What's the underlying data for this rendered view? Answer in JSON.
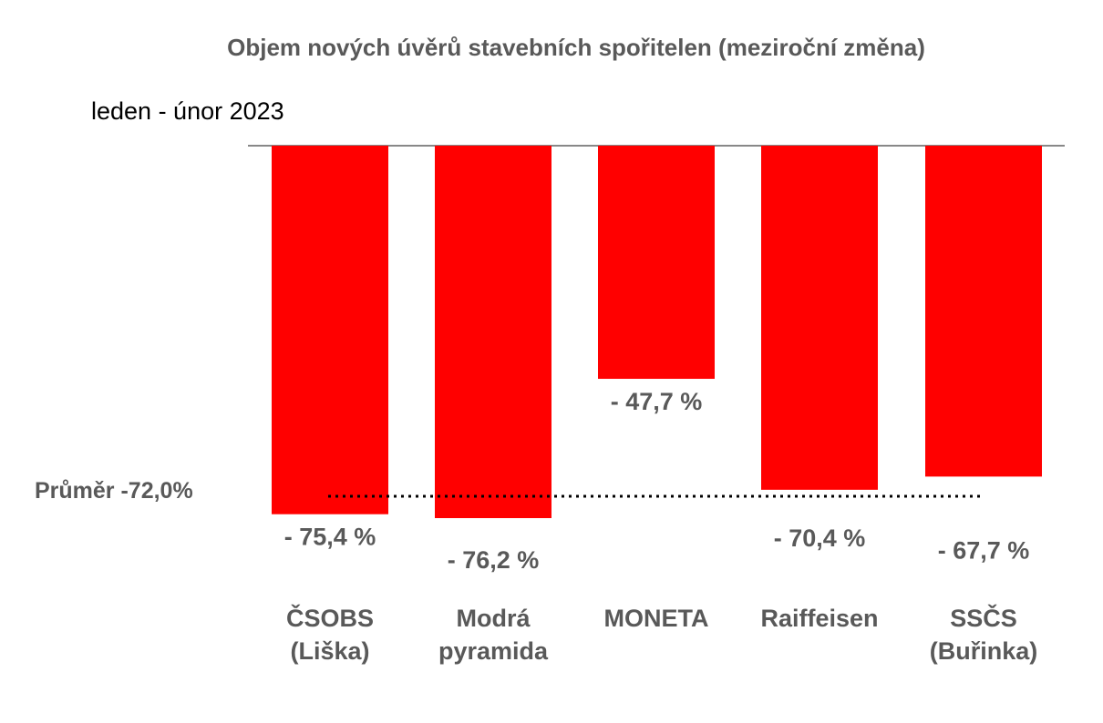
{
  "chart_data": {
    "type": "bar",
    "title": "Objem nových úvěrů stavebních spořitelen (meziroční změna)",
    "subtitle": "leden - únor 2023",
    "categories": [
      [
        "ČSOBS",
        "(Liška)"
      ],
      [
        "Modrá",
        "pyramida"
      ],
      [
        "MONETA"
      ],
      [
        "Raiffeisen"
      ],
      [
        "SSČS",
        "(Buřinka)"
      ]
    ],
    "values": [
      -75.4,
      -76.2,
      -47.7,
      -70.4,
      -67.7
    ],
    "data_labels": [
      "- 75,4 %",
      "- 76,2 %",
      "- 47,7 %",
      "- 70,4 %",
      "- 67,7 %"
    ],
    "average": {
      "value": -72.0,
      "label": "Průměr -72,0%"
    },
    "bar_color": "#ff0000",
    "axis_color": "#888888",
    "ylim": [
      -76.2,
      0
    ],
    "grid": false,
    "legend": "none"
  }
}
